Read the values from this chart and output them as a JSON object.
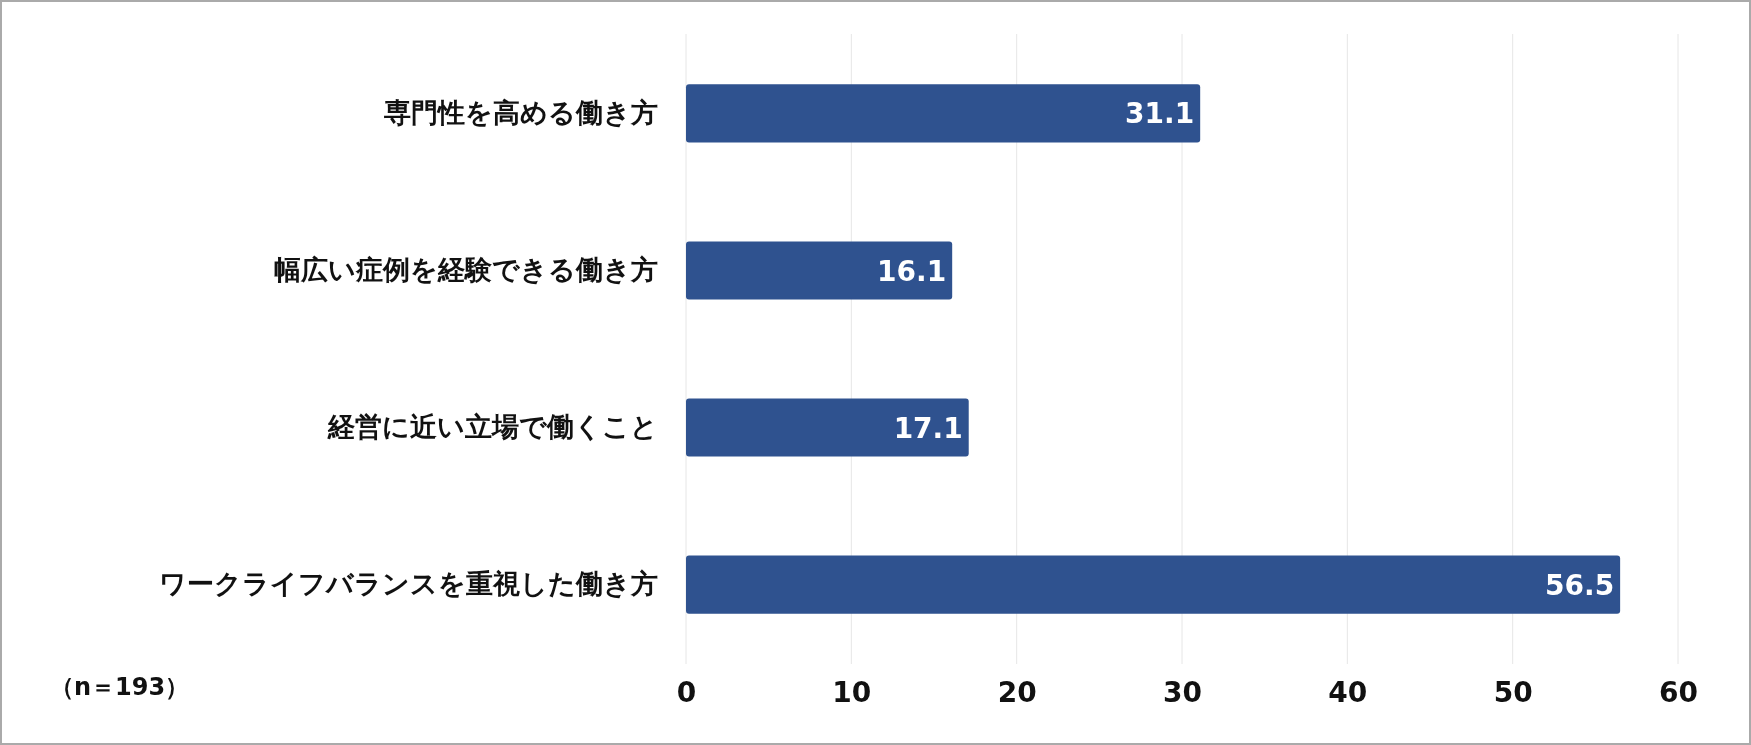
{
  "chart_data": {
    "type": "bar",
    "orientation": "horizontal",
    "categories": [
      "専門性を高める働き方",
      "幅広い症例を経験できる働き方",
      "経営に近い立場で働くこと",
      "ワークライフバランスを重視した働き方"
    ],
    "values": [
      31.1,
      16.1,
      17.1,
      56.5
    ],
    "color": "#2f528f",
    "xlim": [
      0,
      60
    ],
    "xticks": [
      0,
      10,
      20,
      30,
      40,
      50,
      60
    ],
    "grid": "x",
    "data_labels": true,
    "annotations": [
      "（n＝193）"
    ]
  }
}
